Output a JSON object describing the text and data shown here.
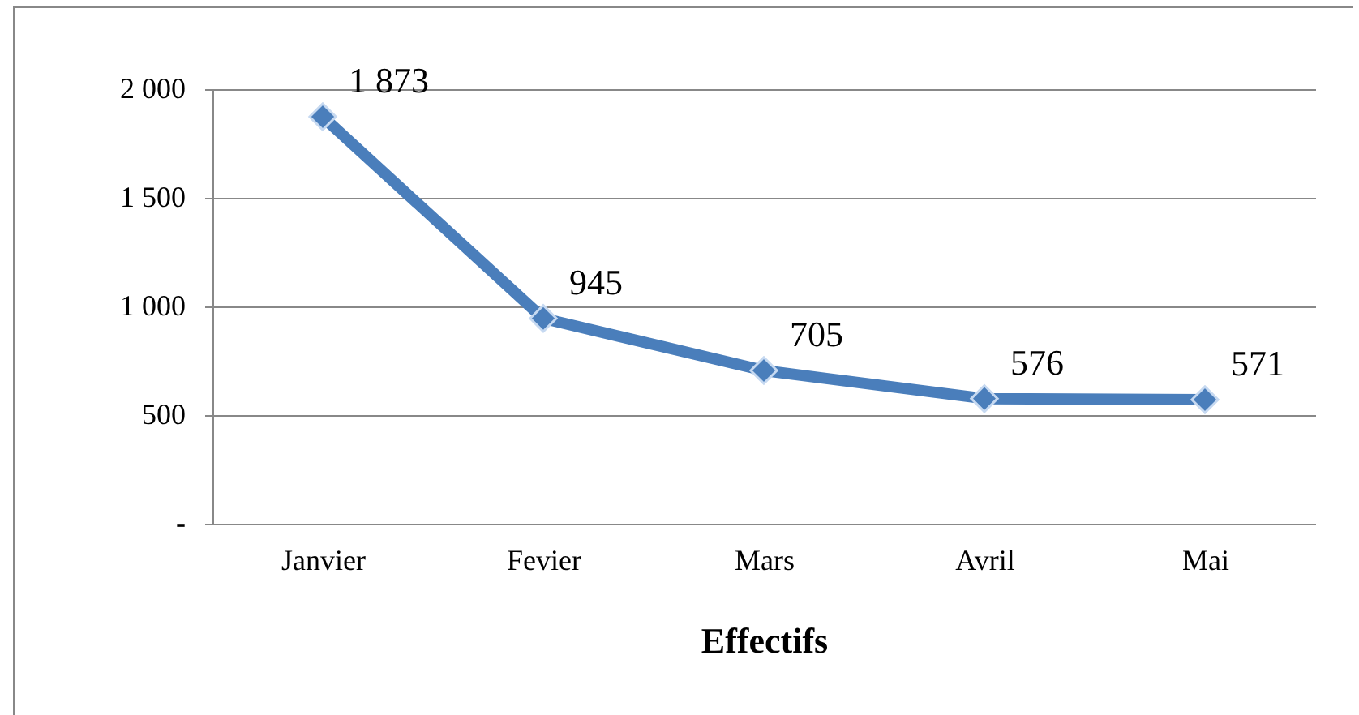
{
  "chart_data": {
    "type": "line",
    "xlabel": "Effectifs",
    "categories": [
      "Janvier",
      "Fevier",
      "Mars",
      "Avril",
      "Mai"
    ],
    "series": [
      {
        "color": "#4a7ebb",
        "values": [
          1873,
          945,
          705,
          576,
          571
        ],
        "value_labels": [
          "1 873",
          "945",
          "705",
          "576",
          "571"
        ]
      }
    ],
    "ylim": [
      0,
      2000
    ],
    "yticks": [
      {
        "value": 0,
        "label": "-"
      },
      {
        "value": 500,
        "label": "500"
      },
      {
        "value": 1000,
        "label": "1 000"
      },
      {
        "value": 1500,
        "label": "1 500"
      },
      {
        "value": 2000,
        "label": "2 000"
      }
    ],
    "grid": "y",
    "marker": "diamond",
    "line_style": "solid"
  }
}
